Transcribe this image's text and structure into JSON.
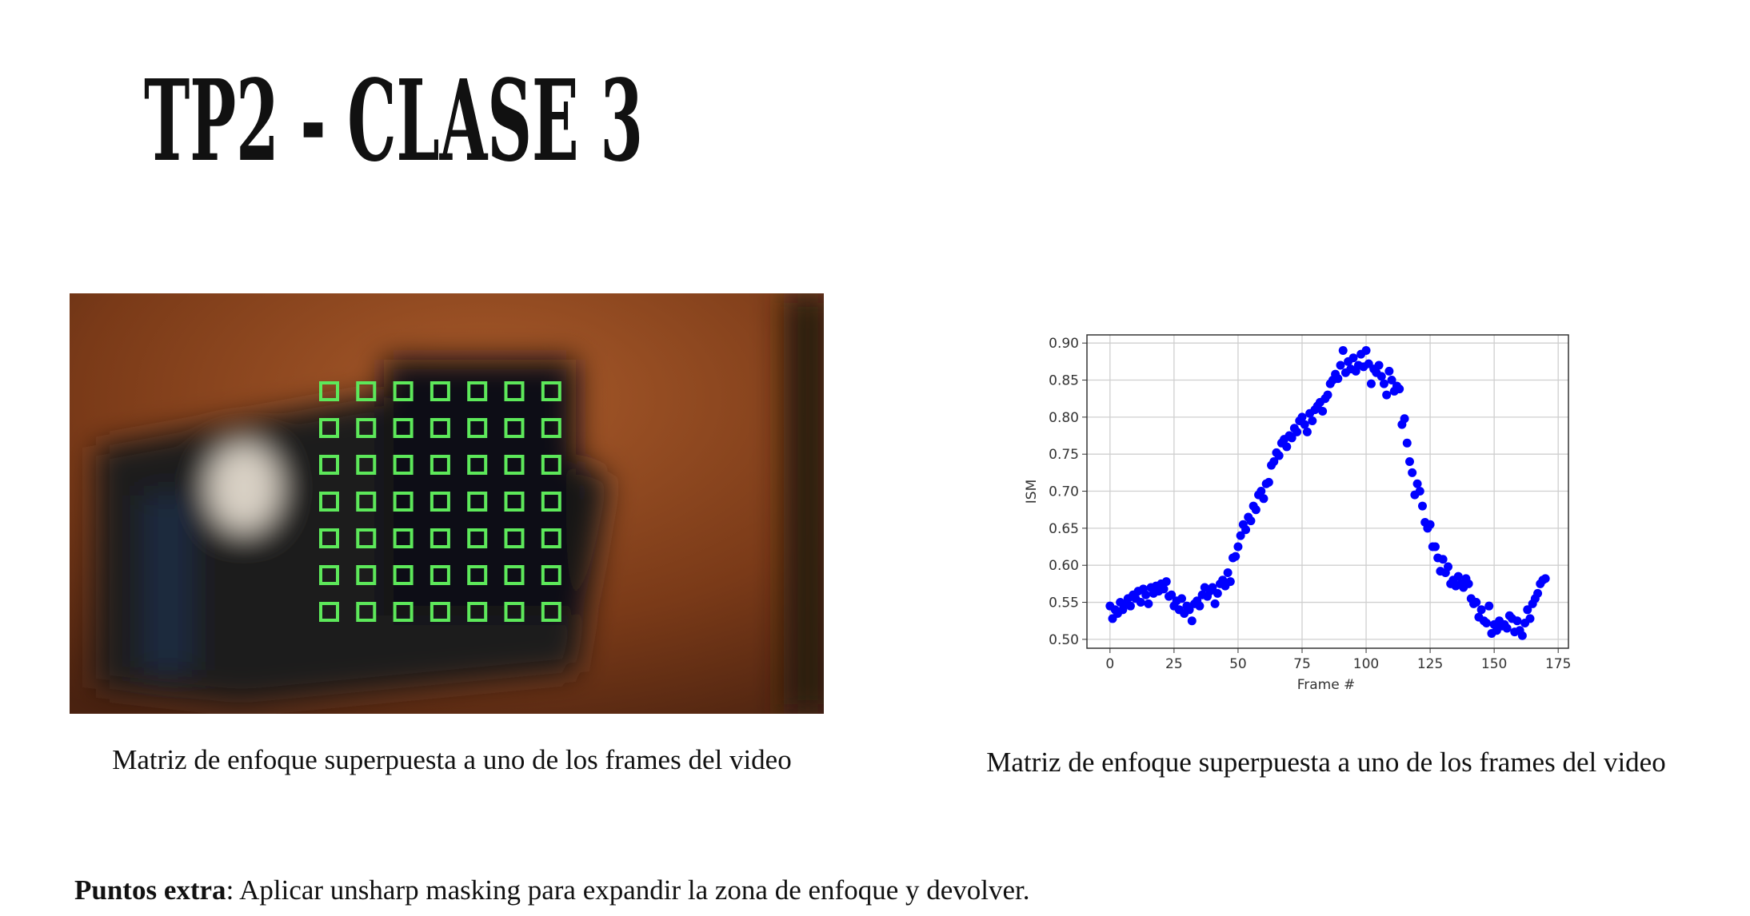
{
  "title": "TP2 - CLASE 3",
  "figure_left": {
    "caption": "Matriz de enfoque superpuesta a uno de los frames del video"
  },
  "chart_data": {
    "type": "scatter",
    "xlabel": "Frame #",
    "ylabel": "ISM",
    "color": "#0000ff",
    "grid": true,
    "xlim": [
      -9,
      179
    ],
    "ylim": [
      0.488,
      0.911
    ],
    "xticks": [
      0,
      25,
      50,
      75,
      100,
      125,
      150,
      175
    ],
    "yticks": [
      {
        "value": 0.5,
        "label": "0.50"
      },
      0.55,
      {
        "value": 0.6,
        "label": "0.60"
      },
      0.65,
      {
        "value": 0.7,
        "label": "0.70"
      },
      0.75,
      {
        "value": 0.8,
        "label": "0.80"
      },
      0.85,
      {
        "value": 0.9,
        "label": "0.90"
      }
    ],
    "x": [
      0,
      1,
      2,
      3,
      4,
      5,
      6,
      7,
      8,
      9,
      10,
      11,
      12,
      13,
      14,
      15,
      16,
      17,
      18,
      19,
      20,
      21,
      22,
      23,
      24,
      25,
      26,
      27,
      28,
      29,
      30,
      31,
      32,
      33,
      34,
      35,
      36,
      37,
      38,
      39,
      40,
      41,
      42,
      43,
      44,
      45,
      46,
      47,
      48,
      49,
      50,
      51,
      52,
      53,
      54,
      55,
      56,
      57,
      58,
      59,
      60,
      61,
      62,
      63,
      64,
      65,
      66,
      67,
      68,
      69,
      70,
      71,
      72,
      73,
      74,
      75,
      76,
      77,
      78,
      79,
      80,
      81,
      82,
      83,
      84,
      85,
      86,
      87,
      88,
      89,
      90,
      91,
      92,
      93,
      94,
      95,
      96,
      97,
      98,
      99,
      100,
      101,
      102,
      103,
      104,
      105,
      106,
      107,
      108,
      109,
      110,
      111,
      112,
      113,
      114,
      115,
      116,
      117,
      118,
      119,
      120,
      121,
      122,
      123,
      124,
      125,
      126,
      127,
      128,
      129,
      130,
      131,
      132,
      133,
      134,
      135,
      136,
      137,
      138,
      139,
      140,
      141,
      142,
      143,
      144,
      145,
      146,
      147,
      148,
      149,
      150,
      151,
      152,
      153,
      154,
      155,
      156,
      157,
      158,
      159,
      160,
      161,
      162,
      163,
      164,
      165,
      166,
      167,
      168,
      169,
      170
    ],
    "values": [
      0.545,
      0.528,
      0.54,
      0.535,
      0.55,
      0.54,
      0.548,
      0.555,
      0.545,
      0.56,
      0.555,
      0.565,
      0.55,
      0.568,
      0.56,
      0.548,
      0.57,
      0.562,
      0.572,
      0.565,
      0.575,
      0.568,
      0.578,
      0.558,
      0.56,
      0.545,
      0.552,
      0.54,
      0.555,
      0.535,
      0.545,
      0.54,
      0.525,
      0.548,
      0.552,
      0.545,
      0.56,
      0.57,
      0.558,
      0.565,
      0.57,
      0.548,
      0.562,
      0.575,
      0.58,
      0.572,
      0.59,
      0.578,
      0.61,
      0.612,
      0.625,
      0.64,
      0.655,
      0.648,
      0.665,
      0.66,
      0.68,
      0.675,
      0.695,
      0.7,
      0.69,
      0.71,
      0.712,
      0.735,
      0.74,
      0.752,
      0.748,
      0.765,
      0.77,
      0.76,
      0.775,
      0.772,
      0.785,
      0.78,
      0.795,
      0.8,
      0.79,
      0.78,
      0.805,
      0.795,
      0.81,
      0.815,
      0.82,
      0.808,
      0.825,
      0.83,
      0.845,
      0.85,
      0.858,
      0.852,
      0.87,
      0.89,
      0.86,
      0.875,
      0.865,
      0.88,
      0.862,
      0.87,
      0.885,
      0.868,
      0.89,
      0.872,
      0.845,
      0.865,
      0.86,
      0.87,
      0.855,
      0.845,
      0.83,
      0.862,
      0.85,
      0.835,
      0.842,
      0.838,
      0.79,
      0.798,
      0.765,
      0.74,
      0.725,
      0.695,
      0.71,
      0.7,
      0.68,
      0.658,
      0.65,
      0.655,
      0.625,
      0.625,
      0.61,
      0.592,
      0.608,
      0.59,
      0.598,
      0.575,
      0.58,
      0.572,
      0.585,
      0.575,
      0.57,
      0.582,
      0.575,
      0.555,
      0.548,
      0.55,
      0.53,
      0.54,
      0.525,
      0.522,
      0.545,
      0.508,
      0.52,
      0.512,
      0.525,
      0.518,
      0.52,
      0.515,
      0.532,
      0.528,
      0.51,
      0.525,
      0.512,
      0.505,
      0.522,
      0.54,
      0.528,
      0.548,
      0.555,
      0.562,
      0.575,
      0.58,
      0.582
    ]
  },
  "chart_caption": "Matriz de enfoque superpuesta a uno de los frames del video",
  "footer": {
    "bold": "Puntos extra",
    "text": ": Aplicar unsharp masking para expandir la zona de enfoque y devolver."
  }
}
